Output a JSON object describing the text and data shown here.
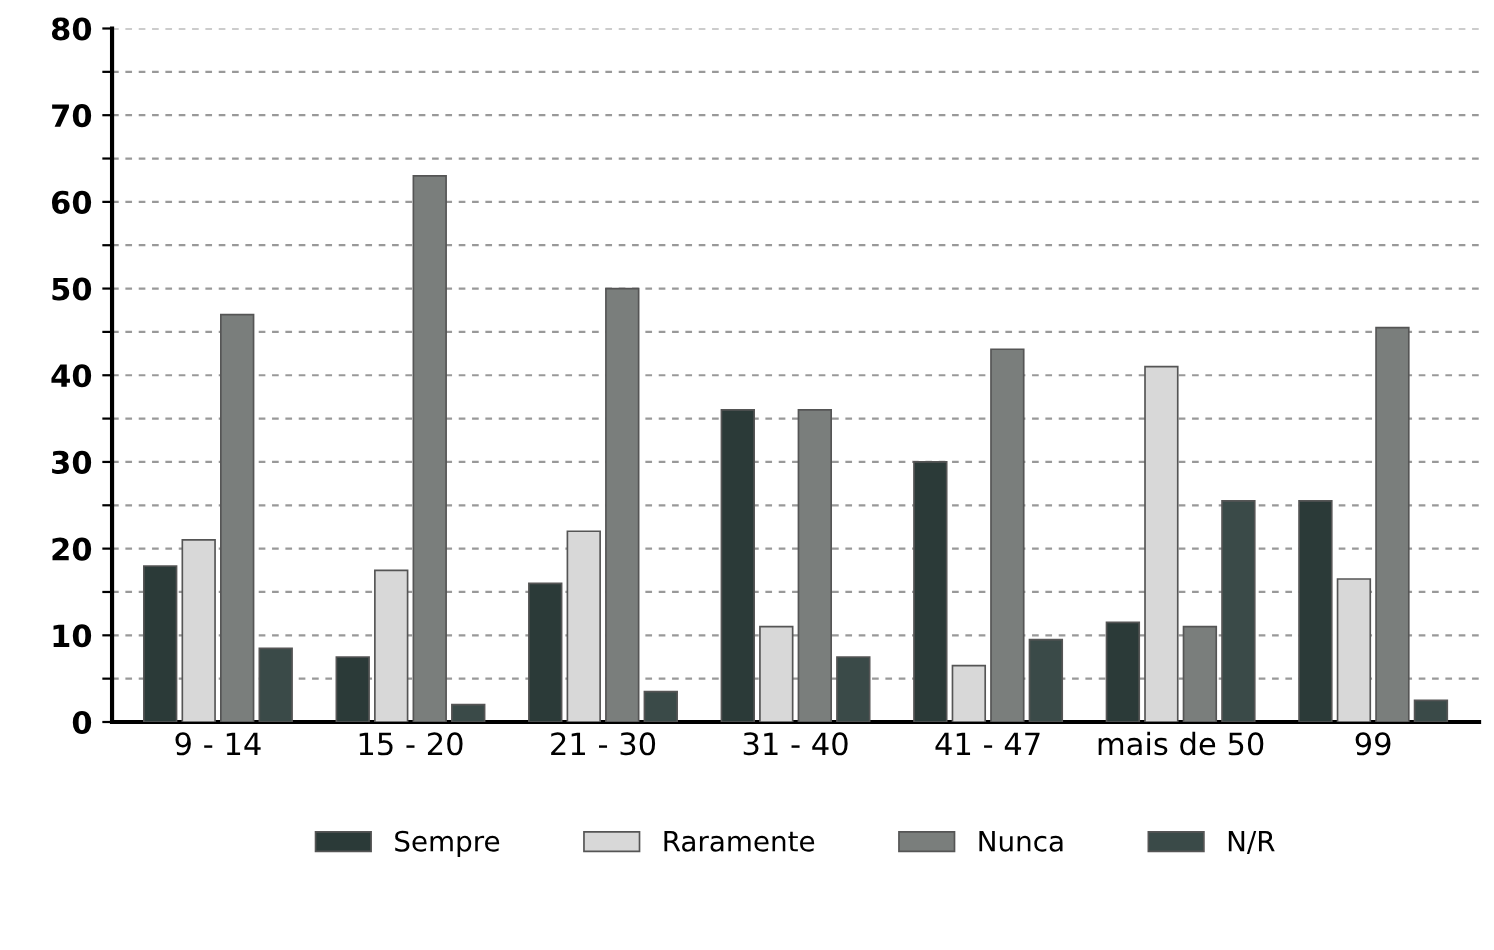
{
  "chart_data": {
    "type": "bar",
    "categories": [
      "9 - 14",
      "15 - 20",
      "21 - 30",
      "31 - 40",
      "41 - 47",
      "mais de 50",
      "99"
    ],
    "series": [
      {
        "name": "Sempre",
        "color": "#2b3a38",
        "values": [
          18,
          7.5,
          16,
          36,
          30,
          11.5,
          25.5
        ]
      },
      {
        "name": "Raramente",
        "color": "#d8d8d8",
        "values": [
          21,
          17.5,
          22,
          11,
          6.5,
          41,
          16.5
        ]
      },
      {
        "name": "Nunca",
        "color": "#7a7e7c",
        "values": [
          47,
          63,
          50,
          36,
          43,
          11,
          45.5
        ]
      },
      {
        "name": "N/R",
        "color": "#3a4a48",
        "values": [
          8.5,
          2,
          3.5,
          7.5,
          9.5,
          25.5,
          2.5
        ]
      }
    ],
    "ylim": [
      0,
      80
    ],
    "yticks": [
      0,
      {
        "value": 5,
        "label": null
      },
      10,
      {
        "value": 15,
        "label": null
      },
      20,
      {
        "value": 25,
        "label": null
      },
      30,
      {
        "value": 35,
        "label": null
      },
      40,
      {
        "value": 45,
        "label": null
      },
      50,
      {
        "value": 55,
        "label": null
      },
      60,
      {
        "value": 65,
        "label": null
      },
      70,
      {
        "value": 75,
        "label": null
      },
      80
    ],
    "grid": "y",
    "legend": "bottom"
  }
}
